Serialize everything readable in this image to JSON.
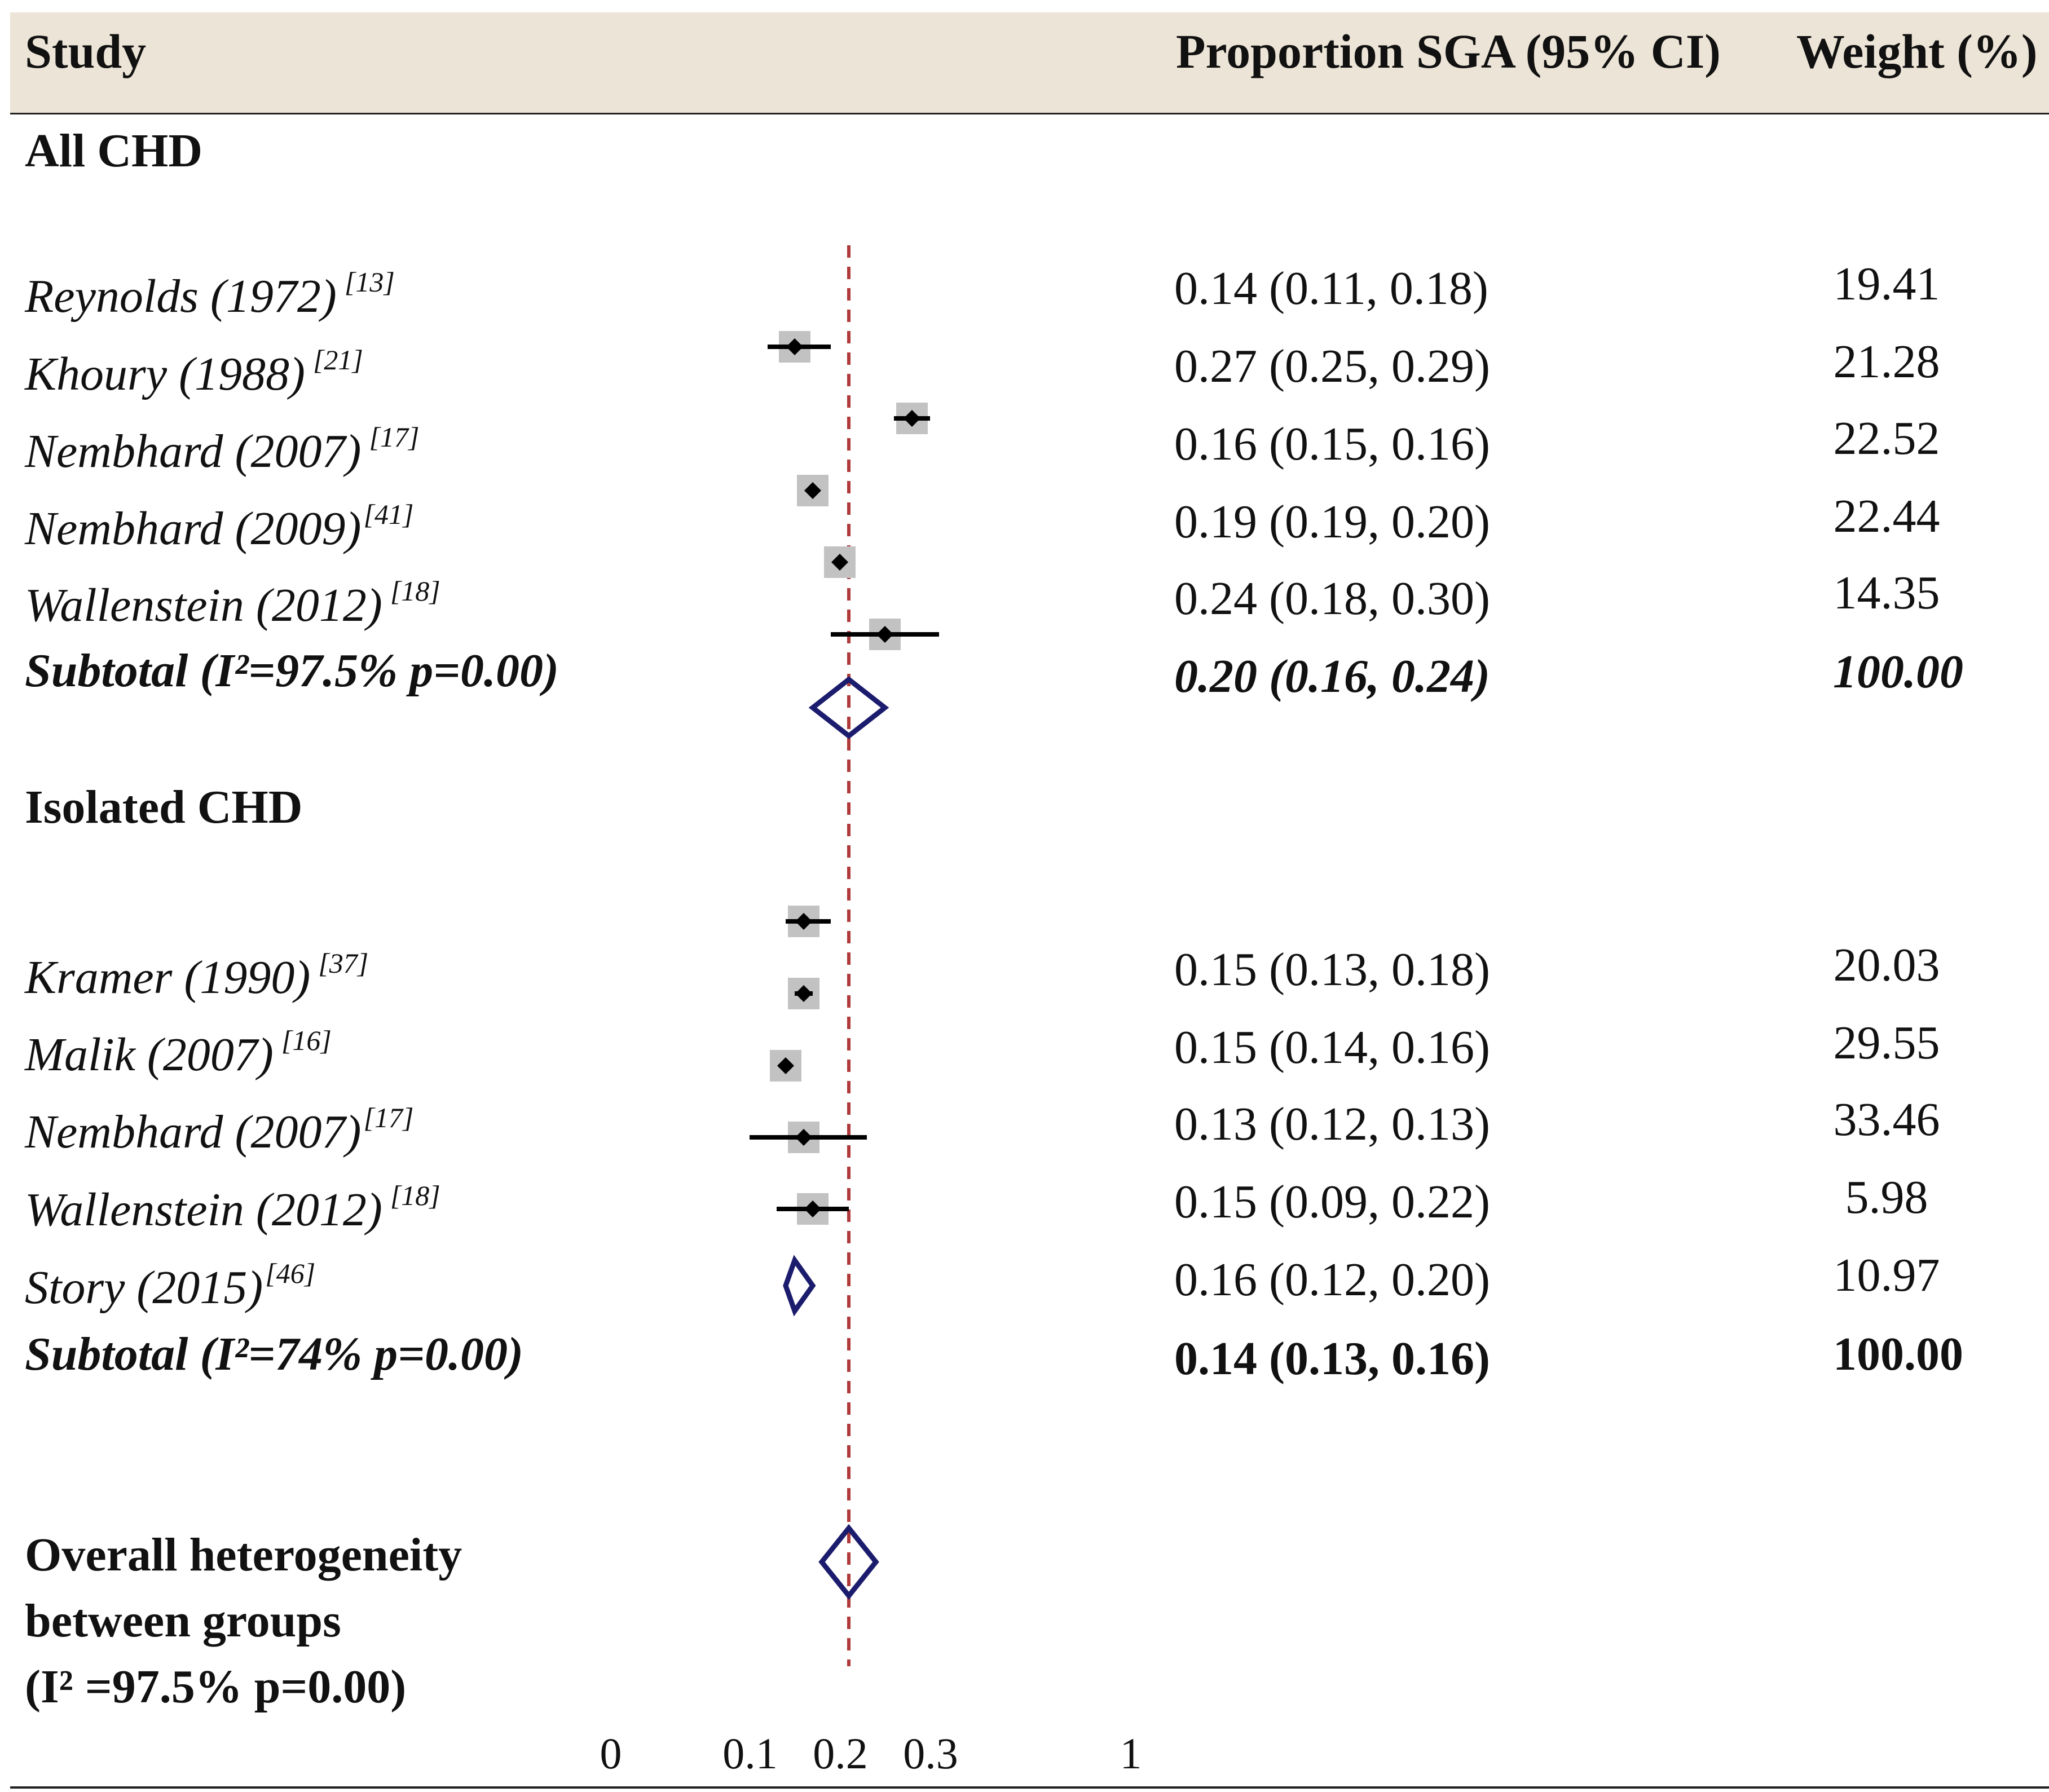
{
  "header": {
    "study": "Study",
    "proportion": "Proportion SGA (95% CI)",
    "weight": "Weight (%)"
  },
  "groups": [
    {
      "title": "All CHD",
      "studies": [
        {
          "author": "Reynolds (1972)",
          "ref": "[13]",
          "ci_text": "0.14 (0.11, 0.18)",
          "weight": "19.41"
        },
        {
          "author": "Khoury (1988)",
          "ref": "[21]",
          "ci_text": "0.27 (0.25, 0.29)",
          "weight": "21.28"
        },
        {
          "author": "Nembhard (2007)",
          "ref": "[17]",
          "ci_text": "0.16 (0.15, 0.16)",
          "weight": "22.52"
        },
        {
          "author": "Nembhard (2009)",
          "ref": "[41]",
          "ci_text": "0.19 (0.19, 0.20)",
          "weight": "22.44"
        },
        {
          "author": "Wallenstein (2012)",
          "ref": "[18]",
          "ci_text": "0.24 (0.18, 0.30)",
          "weight": "14.35"
        }
      ],
      "subtotal": {
        "label": "Subtotal (I²=97.5% p=0.00)",
        "ci_text": "0.20 (0.16, 0.24)",
        "weight": "100.00"
      }
    },
    {
      "title": "Isolated CHD",
      "studies": [
        {
          "author": "Kramer (1990)",
          "ref": "[37]",
          "ci_text": "0.15 (0.13, 0.18)",
          "weight": "20.03"
        },
        {
          "author": "Malik (2007)",
          "ref": "[16]",
          "ci_text": "0.15 (0.14, 0.16)",
          "weight": "29.55"
        },
        {
          "author": "Nembhard (2007)",
          "ref": "[17]",
          "ci_text": "0.13 (0.12, 0.13)",
          "weight": "33.46"
        },
        {
          "author": "Wallenstein (2012)",
          "ref": "[18]",
          "ci_text": "0.15 (0.09, 0.22)",
          "weight": "5.98"
        },
        {
          "author": "Story (2015)",
          "ref": "[46]",
          "ci_text": "0.16 (0.12, 0.20)",
          "weight": "10.97"
        }
      ],
      "subtotal": {
        "label": "Subtotal (I²=74% p=0.00)",
        "ci_text": "0.14 (0.13, 0.16)",
        "weight": "100.00"
      }
    }
  ],
  "overall": {
    "line1": "Overall heterogeneity",
    "line2": "between groups",
    "line3": "(I² =97.5% p=0.00)"
  },
  "axis": {
    "ticks": [
      {
        "value": 0,
        "label": "0"
      },
      {
        "value": 0.1,
        "label": "0.1"
      },
      {
        "value": 0.2,
        "label": "0.2"
      },
      {
        "value": 0.3,
        "label": "0.3"
      },
      {
        "value": 1,
        "label": "1"
      }
    ]
  },
  "chart_data": {
    "type": "forest",
    "title": "",
    "xlabel": "Proportion SGA",
    "reference_line": 0.2,
    "x_ticks": [
      0,
      0.1,
      0.2,
      0.3,
      1
    ],
    "markers": [
      {
        "name": "All CHD marker 1",
        "estimate": 0.14,
        "lower": 0.11,
        "upper": 0.18
      },
      {
        "name": "All CHD marker 2",
        "estimate": 0.27,
        "lower": 0.25,
        "upper": 0.29
      },
      {
        "name": "All CHD marker 3",
        "estimate": 0.16,
        "lower": 0.15,
        "upper": 0.16
      },
      {
        "name": "All CHD marker 4",
        "estimate": 0.19,
        "lower": 0.19,
        "upper": 0.2
      },
      {
        "name": "All CHD marker 5",
        "estimate": 0.24,
        "lower": 0.18,
        "upper": 0.3
      },
      {
        "name": "Isolated CHD marker 1",
        "estimate": 0.15,
        "lower": 0.13,
        "upper": 0.18
      },
      {
        "name": "Isolated CHD marker 2",
        "estimate": 0.15,
        "lower": 0.14,
        "upper": 0.16
      },
      {
        "name": "Isolated CHD marker 3",
        "estimate": 0.13,
        "lower": 0.12,
        "upper": 0.13
      },
      {
        "name": "Isolated CHD marker 4",
        "estimate": 0.15,
        "lower": 0.09,
        "upper": 0.22
      },
      {
        "name": "Isolated CHD marker 5",
        "estimate": 0.16,
        "lower": 0.12,
        "upper": 0.2
      }
    ],
    "diamonds": [
      {
        "name": "All CHD subtotal",
        "estimate": 0.2,
        "lower": 0.16,
        "upper": 0.24
      },
      {
        "name": "Isolated CHD subtotal",
        "estimate": 0.14,
        "lower": 0.13,
        "upper": 0.16
      },
      {
        "name": "Overall",
        "estimate": 0.2,
        "lower": 0.17,
        "upper": 0.23
      }
    ],
    "colors": {
      "reference_line": "#b03a3a",
      "diamond": "#1c1c6e",
      "box": "#c2c2c2",
      "point": "#000000",
      "header_band": "#ece4d6"
    }
  }
}
